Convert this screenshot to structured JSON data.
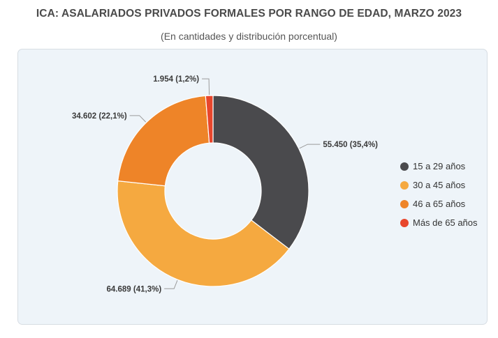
{
  "header": {
    "title": "ICA: ASALARIADOS PRIVADOS FORMALES POR RANGO DE EDAD, MARZO 2023",
    "subtitle": "(En cantidades y distribución porcentual)"
  },
  "chart_data": {
    "type": "pie",
    "donut": true,
    "title": "ICA: ASALARIADOS PRIVADOS FORMALES POR RANGO DE EDAD, MARZO 2023",
    "subtitle": "(En cantidades y distribución porcentual)",
    "legend_position": "right",
    "slices": [
      {
        "name": "15 a 29 años",
        "value": 55450,
        "percent": 35.4,
        "label": "55.450 (35,4%)",
        "color": "#4a4a4d"
      },
      {
        "name": "30 a 45 años",
        "value": 64689,
        "percent": 41.3,
        "label": "64.689 (41,3%)",
        "color": "#f5a940"
      },
      {
        "name": "46 a 65 años",
        "value": 34602,
        "percent": 22.1,
        "label": "34.602 (22,1%)",
        "color": "#ee8428"
      },
      {
        "name": "Más de 65 años",
        "value": 1954,
        "percent": 1.2,
        "label": "1.954 (1,2%)",
        "color": "#e8462c"
      }
    ]
  }
}
